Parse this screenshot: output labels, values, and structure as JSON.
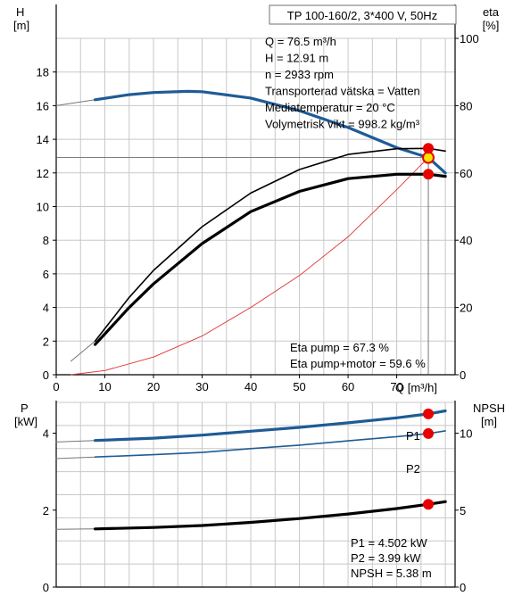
{
  "colors": {
    "head_curve": "#1f5b96",
    "p1_curve": "#1f5b96",
    "p2_curve": "#1f5b96",
    "npsh_curve": "#000000",
    "eta_pump": "#000000",
    "eta_total": "#000000",
    "system_curve": "#e03030",
    "marker": "#e80000",
    "duty_marker_fill": "#f5e600",
    "grid": "#c8c8c8",
    "p1_label": "#1f5b96",
    "p2_label": "#1f5b96"
  },
  "chart_data": [
    {
      "type": "line",
      "id": "pump-curve-top",
      "title": "TP 100-160/2, 3*400 V, 50Hz",
      "xlabel": "Q [m³/h]",
      "x_ticks": [
        0,
        10,
        20,
        30,
        40,
        50,
        60,
        70
      ],
      "xlim": [
        0,
        82
      ],
      "y_left": {
        "label_line1": "H",
        "label_line2": "[m]",
        "lim": [
          0,
          20
        ],
        "ticks": [
          0,
          2,
          4,
          6,
          8,
          10,
          12,
          14,
          16,
          18
        ]
      },
      "y_right": {
        "label_line1": "eta",
        "label_line2": "[%]",
        "lim": [
          0,
          100
        ],
        "ticks": [
          0,
          20,
          40,
          60,
          80,
          100
        ]
      },
      "grid": true,
      "info": [
        "Q = 76.5 m³/h",
        "H = 12.91 m",
        "n = 2933 rpm",
        "Transporterad vätska = Vatten",
        "Mediatemperatur = 20 °C",
        "Volymetrisk vikt = 998.2 kg/m³"
      ],
      "footer": [
        "Eta pump = 67.3 %",
        "Eta pump+motor = 59.6 %"
      ],
      "series": [
        {
          "axis": "left",
          "style": "thin",
          "x": [
            0,
            8
          ],
          "y": [
            16.0,
            16.35
          ]
        },
        {
          "axis": "left",
          "style": "head",
          "x": [
            8,
            15,
            20,
            27,
            30,
            40,
            50,
            60,
            70,
            76.5,
            80
          ],
          "y": [
            16.35,
            16.65,
            16.78,
            16.85,
            16.83,
            16.45,
            15.7,
            14.7,
            13.5,
            12.91,
            12.0
          ]
        },
        {
          "axis": "left",
          "style": "system",
          "x": [
            3,
            10,
            20,
            30,
            40,
            50,
            60,
            70,
            76.5
          ],
          "y": [
            0.0,
            0.25,
            1.05,
            2.3,
            4.0,
            5.9,
            8.2,
            11.0,
            12.91
          ]
        },
        {
          "axis": "right",
          "style": "thin",
          "x": [
            3,
            8
          ],
          "y": [
            4,
            10
          ]
        },
        {
          "axis": "right",
          "style": "eta_pump",
          "x": [
            8,
            15,
            20,
            30,
            40,
            50,
            60,
            70,
            76.5,
            80
          ],
          "y": [
            10,
            23,
            31,
            44,
            54,
            61,
            65.5,
            67.2,
            67.3,
            66.5
          ]
        },
        {
          "axis": "right",
          "style": "eta_total",
          "x": [
            8,
            15,
            20,
            30,
            40,
            50,
            60,
            70,
            76.5,
            80
          ],
          "y": [
            9,
            20,
            27,
            39,
            48.5,
            54.5,
            58.3,
            59.6,
            59.6,
            59.0
          ]
        }
      ],
      "markers": [
        {
          "axis": "left",
          "x": 76.5,
          "y": 12.91,
          "kind": "duty"
        },
        {
          "axis": "right",
          "x": 76.5,
          "y": 67.3,
          "kind": "dot"
        },
        {
          "axis": "right",
          "x": 76.5,
          "y": 59.6,
          "kind": "dot"
        }
      ],
      "guides": {
        "x": 76.5,
        "y": 12.91,
        "y_right_min": 59.6
      }
    },
    {
      "type": "line",
      "id": "power-npsh-bottom",
      "xlim": [
        0,
        82
      ],
      "y_left": {
        "label_line1": "P",
        "label_line2": "[kW]",
        "lim": [
          0,
          4.8
        ],
        "ticks": [
          0,
          2,
          4
        ]
      },
      "y_right": {
        "label_line1": "NPSH",
        "label_line2": "[m]",
        "lim": [
          0,
          12
        ],
        "ticks": [
          0,
          5,
          10
        ]
      },
      "grid": true,
      "labels": {
        "p1": "P1",
        "p2": "P2"
      },
      "footer": [
        "P1 = 4.502 kW",
        "P2 = 3.99 kW",
        "NPSH = 5.38 m"
      ],
      "series": [
        {
          "axis": "left",
          "style": "thin",
          "x": [
            0,
            8
          ],
          "y": [
            3.77,
            3.81
          ]
        },
        {
          "axis": "left",
          "style": "p1",
          "x": [
            8,
            20,
            30,
            40,
            50,
            60,
            70,
            76.5,
            80
          ],
          "y": [
            3.81,
            3.87,
            3.95,
            4.05,
            4.15,
            4.27,
            4.4,
            4.502,
            4.58
          ]
        },
        {
          "axis": "left",
          "style": "thin",
          "x": [
            0,
            8
          ],
          "y": [
            3.34,
            3.38
          ]
        },
        {
          "axis": "left",
          "style": "p2",
          "x": [
            8,
            20,
            30,
            40,
            50,
            60,
            70,
            76.5,
            80
          ],
          "y": [
            3.38,
            3.44,
            3.5,
            3.6,
            3.69,
            3.8,
            3.91,
            3.99,
            4.06
          ]
        },
        {
          "axis": "right",
          "style": "thin",
          "x": [
            0,
            8
          ],
          "y": [
            3.75,
            3.78
          ]
        },
        {
          "axis": "right",
          "style": "npsh",
          "x": [
            8,
            20,
            30,
            40,
            50,
            60,
            70,
            76.5,
            80
          ],
          "y": [
            3.78,
            3.87,
            4.0,
            4.2,
            4.45,
            4.75,
            5.1,
            5.38,
            5.55
          ]
        }
      ],
      "markers": [
        {
          "axis": "left",
          "x": 76.5,
          "y": 4.502,
          "kind": "dot"
        },
        {
          "axis": "left",
          "x": 76.5,
          "y": 3.99,
          "kind": "dot"
        },
        {
          "axis": "right",
          "x": 76.5,
          "y": 5.38,
          "kind": "dot"
        }
      ]
    }
  ]
}
